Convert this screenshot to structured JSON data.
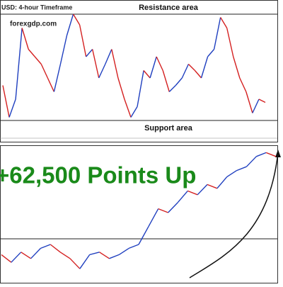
{
  "header": {
    "title": "USD: 4-hour Timeframe",
    "site": "forexgdp.com"
  },
  "annotations": {
    "resistance": "Resistance area",
    "support": "Support area",
    "headline": "+62,500 Points Up"
  },
  "chart_data": [
    {
      "type": "line",
      "ylim": [
        0,
        100
      ],
      "up_color": "#1f3fbf",
      "down_color": "#d42020",
      "values": [
        33,
        3,
        20,
        87,
        67,
        60,
        53,
        40,
        27,
        53,
        80,
        100,
        90,
        60,
        67,
        40,
        53,
        67,
        40,
        20,
        3,
        13,
        47,
        40,
        60,
        47,
        27,
        33,
        40,
        53,
        47,
        40,
        60,
        67,
        97,
        87,
        60,
        40,
        27,
        7,
        20,
        17
      ]
    },
    {
      "type": "line",
      "ylim": [
        0,
        100
      ],
      "up_color": "#1f3fbf",
      "down_color": "#d42020",
      "values": [
        17,
        11,
        19,
        14,
        22,
        25,
        19,
        14,
        6,
        17,
        19,
        14,
        17,
        22,
        25,
        39,
        53,
        50,
        58,
        67,
        64,
        72,
        69,
        78,
        83,
        86,
        94,
        97,
        94
      ]
    }
  ]
}
